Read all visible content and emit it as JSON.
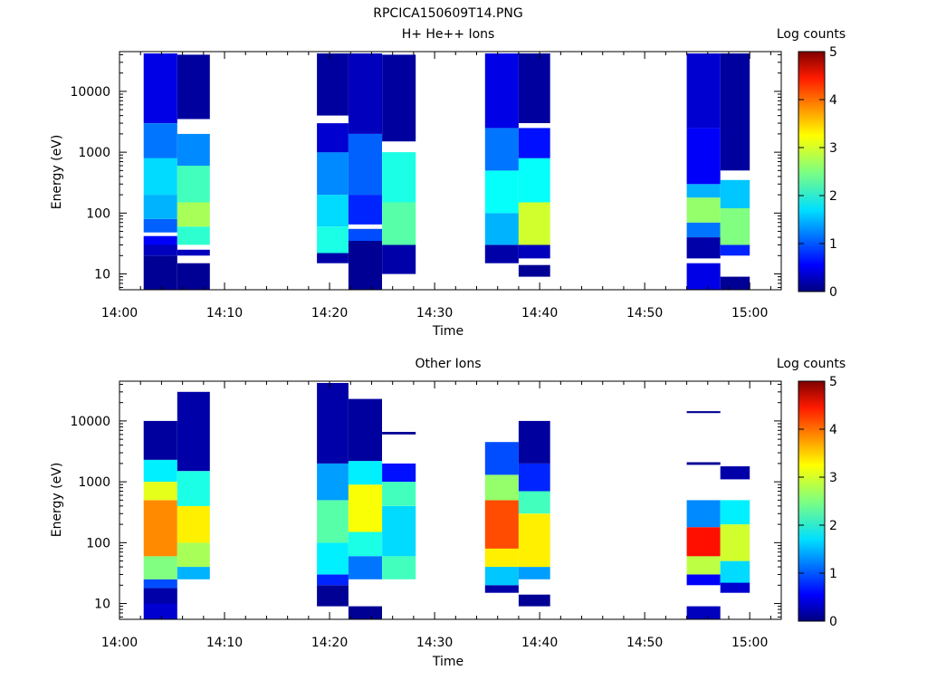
{
  "page_title": "RPCICA150609T14.PNG",
  "colorbar": {
    "label": "Log counts",
    "min": 0,
    "max": 5,
    "ticks": [
      "0",
      "1",
      "2",
      "3",
      "4",
      "5"
    ]
  },
  "x_axis": {
    "label": "Time",
    "range_minutes": [
      0,
      63
    ],
    "ticks": [
      {
        "label": "14:00",
        "minute": 0
      },
      {
        "label": "14:10",
        "minute": 10
      },
      {
        "label": "14:20",
        "minute": 20
      },
      {
        "label": "14:30",
        "minute": 30
      },
      {
        "label": "14:40",
        "minute": 40
      },
      {
        "label": "14:50",
        "minute": 50
      },
      {
        "label": "15:00",
        "minute": 60
      }
    ]
  },
  "y_axis": {
    "label": "Energy (eV)",
    "scale": "log",
    "range": [
      5.5,
      45000
    ],
    "ticks": [
      {
        "label": "10",
        "value": 10
      },
      {
        "label": "100",
        "value": 100
      },
      {
        "label": "1000",
        "value": 1000
      },
      {
        "label": "10000",
        "value": 10000
      }
    ]
  },
  "chart_data": [
    {
      "type": "heatmap",
      "title": "H+ He++ Ions",
      "xlabel": "Time",
      "ylabel": "Energy (eV)",
      "yscale": "log",
      "colorbar_label": "Log counts",
      "columns": [
        {
          "start_min": 2.3,
          "end_min": 5.5,
          "segments": [
            {
              "e_low": 5.5,
              "e_high": 20,
              "logc": 0.1
            },
            {
              "e_low": 20,
              "e_high": 30,
              "logc": 0.3
            },
            {
              "e_low": 30,
              "e_high": 42,
              "logc": 0.6
            },
            {
              "e_low": 48,
              "e_high": 80,
              "logc": 1.1
            },
            {
              "e_low": 80,
              "e_high": 200,
              "logc": 1.5
            },
            {
              "e_low": 200,
              "e_high": 800,
              "logc": 1.7
            },
            {
              "e_low": 800,
              "e_high": 3000,
              "logc": 1.2
            },
            {
              "e_low": 3000,
              "e_high": 42000,
              "logc": 0.5
            }
          ]
        },
        {
          "start_min": 5.5,
          "end_min": 8.6,
          "segments": [
            {
              "e_low": 5.5,
              "e_high": 15,
              "logc": 0.1
            },
            {
              "e_low": 20,
              "e_high": 25,
              "logc": 0.3
            },
            {
              "e_low": 30,
              "e_high": 60,
              "logc": 2.1
            },
            {
              "e_low": 60,
              "e_high": 150,
              "logc": 2.7
            },
            {
              "e_low": 150,
              "e_high": 600,
              "logc": 2.2
            },
            {
              "e_low": 600,
              "e_high": 2000,
              "logc": 1.3
            },
            {
              "e_low": 3500,
              "e_high": 40000,
              "logc": 0.15
            }
          ]
        },
        {
          "start_min": 18.8,
          "end_min": 21.8,
          "segments": [
            {
              "e_low": 15,
              "e_high": 22,
              "logc": 0.2
            },
            {
              "e_low": 22,
              "e_high": 60,
              "logc": 2.0
            },
            {
              "e_low": 60,
              "e_high": 200,
              "logc": 1.7
            },
            {
              "e_low": 200,
              "e_high": 1000,
              "logc": 1.3
            },
            {
              "e_low": 1000,
              "e_high": 3000,
              "logc": 0.4
            },
            {
              "e_low": 4000,
              "e_high": 42000,
              "logc": 0.15
            }
          ]
        },
        {
          "start_min": 21.8,
          "end_min": 25.0,
          "segments": [
            {
              "e_low": 5.5,
              "e_high": 35,
              "logc": 0.1
            },
            {
              "e_low": 35,
              "e_high": 55,
              "logc": 1.0
            },
            {
              "e_low": 65,
              "e_high": 200,
              "logc": 0.8
            },
            {
              "e_low": 200,
              "e_high": 2000,
              "logc": 1.1
            },
            {
              "e_low": 2000,
              "e_high": 42000,
              "logc": 0.3
            }
          ]
        },
        {
          "start_min": 25.0,
          "end_min": 28.2,
          "segments": [
            {
              "e_low": 10,
              "e_high": 30,
              "logc": 0.2
            },
            {
              "e_low": 30,
              "e_high": 150,
              "logc": 2.3
            },
            {
              "e_low": 150,
              "e_high": 1000,
              "logc": 2.0
            },
            {
              "e_low": 1500,
              "e_high": 40000,
              "logc": 0.15
            }
          ]
        },
        {
          "start_min": 34.8,
          "end_min": 38.0,
          "segments": [
            {
              "e_low": 15,
              "e_high": 30,
              "logc": 0.2
            },
            {
              "e_low": 30,
              "e_high": 100,
              "logc": 1.5
            },
            {
              "e_low": 100,
              "e_high": 500,
              "logc": 1.9
            },
            {
              "e_low": 500,
              "e_high": 2500,
              "logc": 1.2
            },
            {
              "e_low": 2500,
              "e_high": 42000,
              "logc": 0.5
            }
          ]
        },
        {
          "start_min": 38.0,
          "end_min": 41.0,
          "segments": [
            {
              "e_low": 9,
              "e_high": 14,
              "logc": 0.1
            },
            {
              "e_low": 18,
              "e_high": 30,
              "logc": 0.3
            },
            {
              "e_low": 30,
              "e_high": 150,
              "logc": 2.9
            },
            {
              "e_low": 150,
              "e_high": 800,
              "logc": 1.9
            },
            {
              "e_low": 800,
              "e_high": 2500,
              "logc": 0.7
            },
            {
              "e_low": 3000,
              "e_high": 42000,
              "logc": 0.15
            }
          ]
        },
        {
          "start_min": 54.0,
          "end_min": 57.2,
          "segments": [
            {
              "e_low": 5.5,
              "e_high": 15,
              "logc": 0.5
            },
            {
              "e_low": 18,
              "e_high": 40,
              "logc": 0.2
            },
            {
              "e_low": 40,
              "e_high": 70,
              "logc": 1.2
            },
            {
              "e_low": 70,
              "e_high": 180,
              "logc": 2.6
            },
            {
              "e_low": 180,
              "e_high": 300,
              "logc": 1.5
            },
            {
              "e_low": 300,
              "e_high": 2500,
              "logc": 0.6
            },
            {
              "e_low": 2500,
              "e_high": 42000,
              "logc": 0.4
            }
          ]
        },
        {
          "start_min": 57.2,
          "end_min": 60.0,
          "segments": [
            {
              "e_low": 5.5,
              "e_high": 9,
              "logc": 0.1
            },
            {
              "e_low": 20,
              "e_high": 30,
              "logc": 0.8
            },
            {
              "e_low": 30,
              "e_high": 120,
              "logc": 2.5
            },
            {
              "e_low": 120,
              "e_high": 350,
              "logc": 1.6
            },
            {
              "e_low": 500,
              "e_high": 42000,
              "logc": 0.15
            }
          ]
        }
      ]
    },
    {
      "type": "heatmap",
      "title": "Other Ions",
      "xlabel": "Time",
      "ylabel": "Energy (eV)",
      "yscale": "log",
      "colorbar_label": "Log counts",
      "columns": [
        {
          "start_min": 2.3,
          "end_min": 5.5,
          "segments": [
            {
              "e_low": 5.5,
              "e_high": 10,
              "logc": 0.4
            },
            {
              "e_low": 10,
              "e_high": 18,
              "logc": 0.2
            },
            {
              "e_low": 18,
              "e_high": 25,
              "logc": 1.0
            },
            {
              "e_low": 25,
              "e_high": 60,
              "logc": 2.5
            },
            {
              "e_low": 60,
              "e_high": 500,
              "logc": 3.7
            },
            {
              "e_low": 500,
              "e_high": 1000,
              "logc": 3.0
            },
            {
              "e_low": 1000,
              "e_high": 2300,
              "logc": 1.8
            },
            {
              "e_low": 2300,
              "e_high": 10000,
              "logc": 0.15
            }
          ]
        },
        {
          "start_min": 5.5,
          "end_min": 8.6,
          "segments": [
            {
              "e_low": 25,
              "e_high": 40,
              "logc": 1.5
            },
            {
              "e_low": 40,
              "e_high": 100,
              "logc": 2.7
            },
            {
              "e_low": 100,
              "e_high": 400,
              "logc": 3.2
            },
            {
              "e_low": 400,
              "e_high": 1500,
              "logc": 2.0
            },
            {
              "e_low": 1500,
              "e_high": 30000,
              "logc": 0.2
            }
          ]
        },
        {
          "start_min": 18.8,
          "end_min": 21.8,
          "segments": [
            {
              "e_low": 9,
              "e_high": 20,
              "logc": 0.1
            },
            {
              "e_low": 20,
              "e_high": 30,
              "logc": 0.8
            },
            {
              "e_low": 30,
              "e_high": 100,
              "logc": 1.8
            },
            {
              "e_low": 100,
              "e_high": 500,
              "logc": 2.3
            },
            {
              "e_low": 500,
              "e_high": 2000,
              "logc": 1.4
            },
            {
              "e_low": 2000,
              "e_high": 42000,
              "logc": 0.2
            }
          ]
        },
        {
          "start_min": 21.8,
          "end_min": 25.0,
          "segments": [
            {
              "e_low": 5.5,
              "e_high": 9,
              "logc": 0.1
            },
            {
              "e_low": 25,
              "e_high": 60,
              "logc": 1.2
            },
            {
              "e_low": 60,
              "e_high": 150,
              "logc": 2.0
            },
            {
              "e_low": 150,
              "e_high": 900,
              "logc": 3.1
            },
            {
              "e_low": 900,
              "e_high": 2200,
              "logc": 1.8
            },
            {
              "e_low": 2200,
              "e_high": 23000,
              "logc": 0.15
            }
          ]
        },
        {
          "start_min": 25.0,
          "end_min": 28.2,
          "segments": [
            {
              "e_low": 25,
              "e_high": 60,
              "logc": 2.2
            },
            {
              "e_low": 60,
              "e_high": 400,
              "logc": 1.7
            },
            {
              "e_low": 400,
              "e_high": 1000,
              "logc": 2.2
            },
            {
              "e_low": 1000,
              "e_high": 2000,
              "logc": 0.7
            },
            {
              "e_low": 6000,
              "e_high": 6600,
              "logc": 0.1
            }
          ]
        },
        {
          "start_min": 34.8,
          "end_min": 38.0,
          "segments": [
            {
              "e_low": 15,
              "e_high": 20,
              "logc": 0.2
            },
            {
              "e_low": 20,
              "e_high": 40,
              "logc": 1.6
            },
            {
              "e_low": 40,
              "e_high": 80,
              "logc": 3.2
            },
            {
              "e_low": 80,
              "e_high": 500,
              "logc": 4.0
            },
            {
              "e_low": 500,
              "e_high": 1300,
              "logc": 2.6
            },
            {
              "e_low": 1300,
              "e_high": 4500,
              "logc": 1.0
            }
          ]
        },
        {
          "start_min": 38.0,
          "end_min": 41.0,
          "segments": [
            {
              "e_low": 9,
              "e_high": 14,
              "logc": 0.1
            },
            {
              "e_low": 25,
              "e_high": 40,
              "logc": 1.4
            },
            {
              "e_low": 40,
              "e_high": 300,
              "logc": 3.2
            },
            {
              "e_low": 300,
              "e_high": 700,
              "logc": 2.2
            },
            {
              "e_low": 700,
              "e_high": 2000,
              "logc": 0.8
            },
            {
              "e_low": 2000,
              "e_high": 10000,
              "logc": 0.15
            }
          ]
        },
        {
          "start_min": 54.0,
          "end_min": 57.2,
          "segments": [
            {
              "e_low": 5.5,
              "e_high": 9,
              "logc": 0.3
            },
            {
              "e_low": 20,
              "e_high": 30,
              "logc": 0.6
            },
            {
              "e_low": 30,
              "e_high": 60,
              "logc": 2.8
            },
            {
              "e_low": 60,
              "e_high": 180,
              "logc": 4.3
            },
            {
              "e_low": 180,
              "e_high": 500,
              "logc": 1.3
            },
            {
              "e_low": 1900,
              "e_high": 2100,
              "logc": 0.1
            },
            {
              "e_low": 13500,
              "e_high": 14500,
              "logc": 0.1
            }
          ]
        },
        {
          "start_min": 57.2,
          "end_min": 60.0,
          "segments": [
            {
              "e_low": 15,
              "e_high": 22,
              "logc": 0.4
            },
            {
              "e_low": 22,
              "e_high": 50,
              "logc": 1.7
            },
            {
              "e_low": 50,
              "e_high": 200,
              "logc": 2.9
            },
            {
              "e_low": 200,
              "e_high": 500,
              "logc": 1.8
            },
            {
              "e_low": 1100,
              "e_high": 1800,
              "logc": 0.2
            }
          ]
        }
      ]
    }
  ]
}
